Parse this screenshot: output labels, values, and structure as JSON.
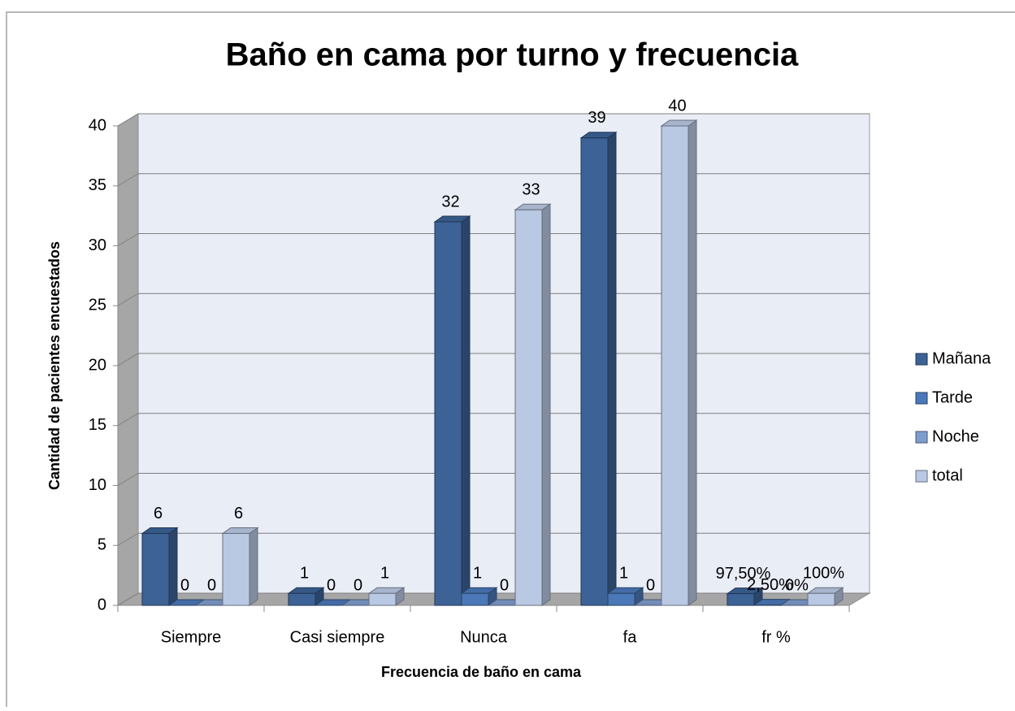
{
  "chart_data": {
    "type": "bar",
    "title": "Baño en cama por turno y frecuencia",
    "x_label": "Frecuencia de baño en cama",
    "y_label": "Cantidad de pacientes encuestados",
    "categories": [
      "Siempre",
      "Casi siempre",
      "Nunca",
      "fa",
      "fr %"
    ],
    "series": [
      {
        "name": "Mañana",
        "color": "#3c6296",
        "values": [
          6,
          1,
          32,
          39,
          0.975
        ],
        "value_labels": [
          null,
          null,
          null,
          null,
          "97,50%"
        ]
      },
      {
        "name": "Tarde",
        "color": "#4a78b8",
        "values": [
          0,
          0,
          1,
          1,
          0.025
        ],
        "value_labels": [
          null,
          null,
          null,
          null,
          "2,50%"
        ]
      },
      {
        "name": "Noche",
        "color": "#7f9dcc",
        "values": [
          0,
          0,
          0,
          0,
          0
        ],
        "value_labels": [
          null,
          null,
          null,
          null,
          "0%"
        ]
      },
      {
        "name": "total",
        "color": "#b9c8e3",
        "values": [
          6,
          1,
          33,
          40,
          1
        ],
        "value_labels": [
          null,
          null,
          null,
          null,
          "100%"
        ]
      }
    ],
    "ylim": [
      0,
      40
    ],
    "yticks": [
      0,
      5,
      10,
      15,
      20,
      25,
      30,
      35,
      40
    ],
    "grid": true,
    "legend": "right"
  }
}
